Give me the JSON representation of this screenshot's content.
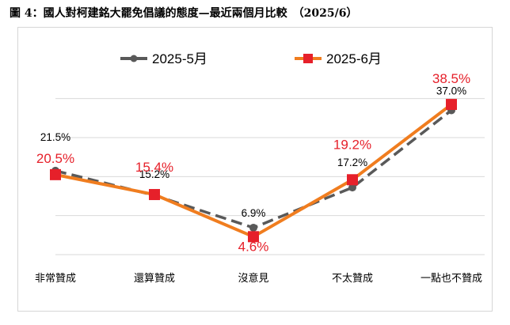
{
  "figure": {
    "title": "圖 4：國人對柯建銘大罷免倡議的態度—最近兩個月比較　（2025/6）"
  },
  "chart_data": {
    "type": "line",
    "title": "",
    "xlabel": "",
    "ylabel": "",
    "categories": [
      "非常贊成",
      "還算贊成",
      "沒意見",
      "不太贊成",
      "一點也不贊成"
    ],
    "ylim": [
      0,
      45
    ],
    "grid": true,
    "legend_position": "top",
    "series": [
      {
        "name": "2025-5月",
        "values": [
          21.5,
          15.2,
          6.9,
          17.2,
          37.0
        ],
        "labels": [
          "21.5%",
          "15.2%",
          "6.9%",
          "17.2%",
          "37.0%"
        ],
        "color": "#595959",
        "label_color": "#000000",
        "line_style": "dashed",
        "marker": "circle"
      },
      {
        "name": "2025-6月",
        "values": [
          20.5,
          15.4,
          4.6,
          19.2,
          38.5
        ],
        "labels": [
          "20.5%",
          "15.4%",
          "4.6%",
          "19.2%",
          "38.5%"
        ],
        "color": "#f07d1f",
        "marker_color": "#e6202a",
        "label_color": "#e6202a",
        "line_style": "solid",
        "marker": "square"
      }
    ]
  }
}
